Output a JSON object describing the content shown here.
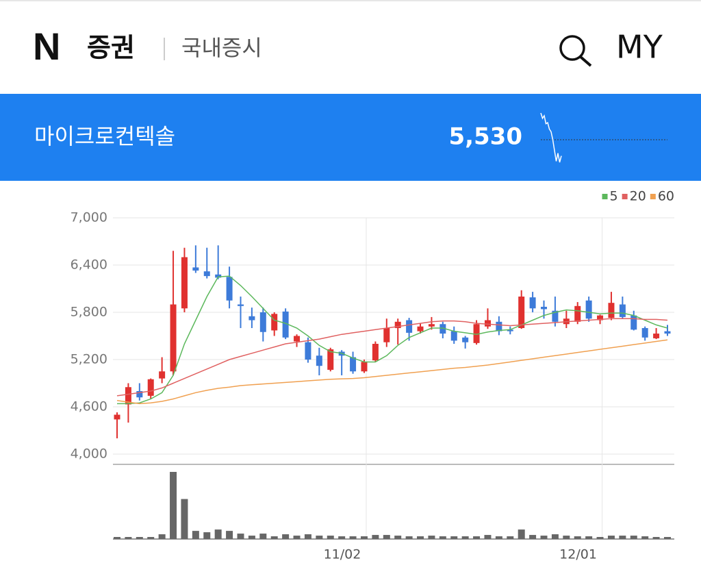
{
  "page_header": {
    "logo": "N",
    "service": "증권",
    "section": "국내증시",
    "my": "MY"
  },
  "stock": {
    "name": "마이크로컨텍솔",
    "price": "5,530",
    "sparkline": [
      6000,
      5900,
      5950,
      5800,
      5820,
      5700,
      5650,
      5500,
      5300,
      5100,
      5250,
      5080,
      5200
    ]
  },
  "chart_data": {
    "type": "candlestick",
    "categories": [
      null,
      null,
      null,
      null,
      null,
      null,
      null,
      null,
      null,
      null,
      null,
      null,
      null,
      null,
      null,
      null,
      null,
      null,
      null,
      null,
      null,
      null,
      "11/02",
      null,
      null,
      null,
      null,
      null,
      null,
      null,
      null,
      null,
      null,
      null,
      null,
      null,
      null,
      null,
      null,
      null,
      null,
      null,
      null,
      "12/01",
      null,
      null,
      null,
      null,
      null,
      null
    ],
    "open": [
      4440,
      4630,
      4800,
      4740,
      4960,
      5050,
      5850,
      6370,
      6320,
      6280,
      6250,
      5900,
      5750,
      5800,
      5570,
      5810,
      5430,
      5420,
      5250,
      5070,
      5300,
      5230,
      5050,
      5190,
      5420,
      5600,
      5700,
      5560,
      5620,
      5650,
      5560,
      5480,
      5410,
      5620,
      5680,
      5580,
      5600,
      5990,
      5870,
      5820,
      5650,
      5680,
      5950,
      5700,
      5730,
      5900,
      5760,
      5600,
      5470,
      5560
    ],
    "high": [
      4530,
      4900,
      4900,
      4960,
      5230,
      6580,
      6620,
      6650,
      6620,
      6650,
      6380,
      6000,
      5860,
      5860,
      5800,
      5850,
      5520,
      5480,
      5350,
      5350,
      5320,
      5300,
      5200,
      5430,
      5720,
      5720,
      5730,
      5660,
      5740,
      5680,
      5620,
      5500,
      5700,
      5850,
      5750,
      5620,
      6080,
      6060,
      5950,
      6000,
      5820,
      5930,
      6000,
      5770,
      6060,
      6000,
      5820,
      5620,
      5600,
      5640
    ],
    "low": [
      4200,
      4400,
      4680,
      4700,
      4900,
      5000,
      5800,
      6300,
      6230,
      6220,
      5850,
      5600,
      5600,
      5430,
      5500,
      5460,
      5360,
      5160,
      5000,
      5050,
      5000,
      5020,
      5030,
      5170,
      5360,
      5390,
      5440,
      5530,
      5580,
      5470,
      5400,
      5340,
      5390,
      5590,
      5510,
      5520,
      5590,
      5800,
      5720,
      5620,
      5600,
      5650,
      5680,
      5650,
      5700,
      5720,
      5570,
      5440,
      5460,
      5500
    ],
    "close": [
      4500,
      4850,
      4720,
      4950,
      5050,
      5900,
      6500,
      6330,
      6260,
      6240,
      5950,
      5880,
      5700,
      5550,
      5780,
      5480,
      5500,
      5200,
      5120,
      5330,
      5250,
      5050,
      5170,
      5400,
      5600,
      5680,
      5540,
      5620,
      5650,
      5530,
      5440,
      5420,
      5650,
      5700,
      5560,
      5560,
      6000,
      5850,
      5840,
      5680,
      5720,
      5880,
      5720,
      5760,
      5920,
      5740,
      5580,
      5480,
      5530,
      5530
    ],
    "up_color": "#e0312f",
    "down_color": "#3d7bd9",
    "series": [
      {
        "name": "5",
        "color": "#5cb85c",
        "values": [
          4640,
          4640,
          4650,
          4700,
          4780,
          5000,
          5400,
          5700,
          6000,
          6250,
          6260,
          6140,
          6000,
          5850,
          5700,
          5660,
          5600,
          5500,
          5380,
          5300,
          5280,
          5220,
          5170,
          5170,
          5250,
          5380,
          5480,
          5540,
          5600,
          5600,
          5560,
          5540,
          5520,
          5550,
          5570,
          5580,
          5640,
          5700,
          5760,
          5800,
          5830,
          5820,
          5800,
          5780,
          5790,
          5790,
          5760,
          5700,
          5640,
          5600
        ]
      },
      {
        "name": "20",
        "color": "#e06060",
        "values": [
          4740,
          4760,
          4780,
          4800,
          4840,
          4900,
          4960,
          5020,
          5080,
          5140,
          5200,
          5240,
          5280,
          5320,
          5360,
          5400,
          5420,
          5440,
          5460,
          5490,
          5520,
          5540,
          5560,
          5580,
          5600,
          5620,
          5640,
          5660,
          5680,
          5690,
          5690,
          5680,
          5660,
          5650,
          5640,
          5630,
          5640,
          5650,
          5660,
          5670,
          5680,
          5690,
          5700,
          5710,
          5720,
          5720,
          5720,
          5710,
          5710,
          5700
        ]
      },
      {
        "name": "60",
        "color": "#f0a050",
        "values": [
          4680,
          4660,
          4640,
          4650,
          4670,
          4700,
          4740,
          4780,
          4810,
          4835,
          4850,
          4870,
          4880,
          4890,
          4900,
          4910,
          4920,
          4930,
          4940,
          4950,
          4955,
          4960,
          4970,
          4985,
          5000,
          5015,
          5030,
          5045,
          5060,
          5075,
          5090,
          5100,
          5115,
          5130,
          5150,
          5170,
          5190,
          5210,
          5230,
          5250,
          5270,
          5290,
          5310,
          5330,
          5350,
          5370,
          5390,
          5410,
          5430,
          5450
        ]
      }
    ],
    "volume": [
      3,
      3,
      3,
      3,
      7,
      99,
      59,
      12,
      10,
      14,
      12,
      8,
      5,
      8,
      4,
      7,
      5,
      7,
      5,
      5,
      4,
      4,
      4,
      6,
      6,
      5,
      4,
      4,
      5,
      4,
      4,
      4,
      4,
      6,
      4,
      4,
      14,
      6,
      5,
      7,
      5,
      4,
      4,
      3,
      5,
      5,
      5,
      4,
      3,
      3
    ],
    "volume_color": "#666666",
    "volume_ylim": [
      0,
      100
    ],
    "ylim": [
      4000,
      7000
    ],
    "yticks": [
      {
        "value": 4000,
        "label": "4,000"
      },
      {
        "value": 4600,
        "label": "4,600"
      },
      {
        "value": 5200,
        "label": "5,200"
      },
      {
        "value": 5800,
        "label": "5,800"
      },
      {
        "value": 6400,
        "label": "6,400"
      },
      {
        "value": 7000,
        "label": "7,000"
      }
    ],
    "grid": true,
    "legend": "top-right"
  }
}
